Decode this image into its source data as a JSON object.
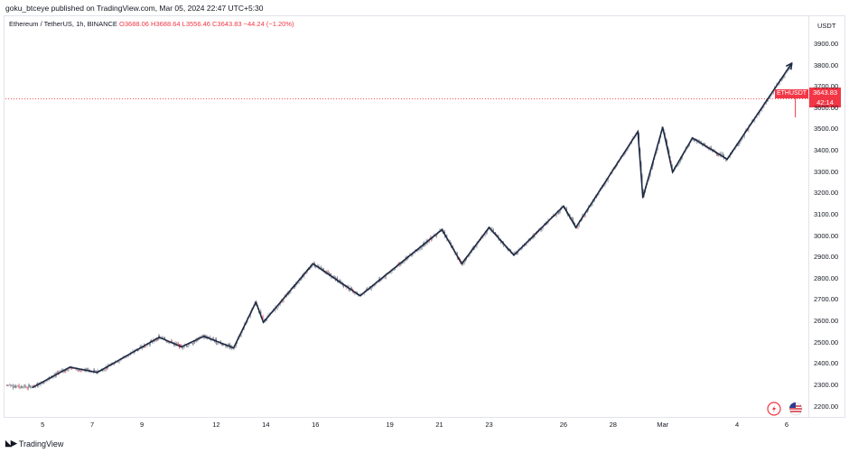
{
  "published": "goku_btceye published on TradingView.com, Mar 05, 2024 22:47 UTC+5:30",
  "symbol": {
    "name": "Ethereum / TetherUS, 1h, BINANCE",
    "ohlc": "O3688.06 H3688.64 L3556.46 C3643.83 −44.24 (−1.20%)"
  },
  "currency": "USDT",
  "last_price": {
    "ticker": "ETHUSDT",
    "price": "3643.83",
    "countdown": "42:14",
    "value": 3643.83
  },
  "logo_text": "TradingView",
  "colors": {
    "up": "#26a69a",
    "down": "#f23645",
    "candle_mono": "#8a8e99",
    "wave": "#1e2a44",
    "grid": "#e0e3eb"
  },
  "icons": [
    "tradingview-logo-icon",
    "lightning-icon",
    "us-flag-icon"
  ],
  "chart_data": {
    "type": "line",
    "title": "Ethereum / TetherUS, 1h, BINANCE",
    "ylim": [
      2160,
      3980
    ],
    "y_ticks": [
      2200,
      2300,
      2400,
      2500,
      2600,
      2700,
      2800,
      2900,
      3000,
      3100,
      3200,
      3300,
      3400,
      3500,
      3600,
      3700,
      3800,
      3900
    ],
    "y_tick_labels": [
      "2200.00",
      "2300.00",
      "2400.00",
      "2500.00",
      "2600.00",
      "2700.00",
      "2800.00",
      "2900.00",
      "3000.00",
      "3100.00",
      "3200.00",
      "3300.00",
      "3400.00",
      "3500.00",
      "3600.00",
      "3700.00",
      "3800.00",
      "3900.00"
    ],
    "x_tick_labels": [
      "5",
      "7",
      "9",
      "12",
      "14",
      "16",
      "19",
      "21",
      "23",
      "26",
      "28",
      "Mar",
      "4",
      "6"
    ],
    "x_tick_days": [
      5,
      7,
      9,
      12,
      14,
      16,
      19,
      21,
      23,
      26,
      28,
      30,
      33,
      35
    ],
    "x_range_days": [
      3.5,
      35.8
    ],
    "series": [
      {
        "values_note_free": true,
        "x_days": [
          4.6,
          6.1,
          7.2,
          9.7,
          10.6,
          11.5,
          12.7,
          13.6,
          13.9,
          15.9,
          17.8,
          21.1,
          21.9,
          23.0,
          24.0,
          26.0,
          26.5,
          29.0,
          29.2,
          30.0,
          30.4,
          31.2,
          32.6,
          35.2
        ],
        "y": [
          2290,
          2385,
          2360,
          2525,
          2480,
          2530,
          2475,
          2690,
          2595,
          2870,
          2720,
          3030,
          2870,
          3040,
          2910,
          3140,
          3040,
          3490,
          3180,
          3510,
          3300,
          3460,
          3360,
          3810
        ]
      }
    ]
  }
}
